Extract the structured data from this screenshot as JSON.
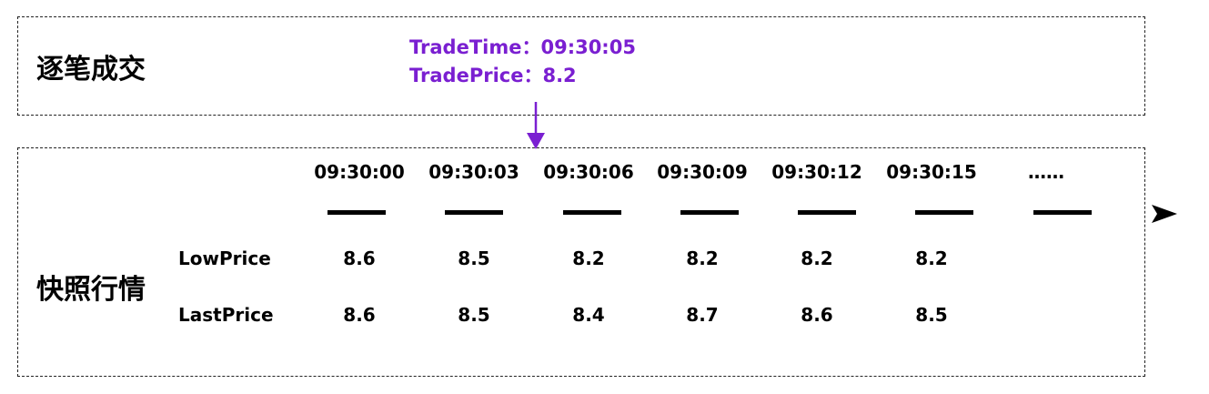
{
  "trade_panel": {
    "title": "逐笔成交",
    "trade_time": "TradeTime：09:30:05",
    "trade_price": "TradePrice：8.2",
    "accent_color": "#7a1fd1"
  },
  "snapshot_panel": {
    "title": "快照行情",
    "times": [
      "09:30:00",
      "09:30:03",
      "09:30:06",
      "09:30:09",
      "09:30:12",
      "09:30:15",
      "……"
    ],
    "rows": [
      {
        "label": "LowPrice",
        "values": [
          "8.6",
          "8.5",
          "8.2",
          "8.2",
          "8.2",
          "8.2"
        ]
      },
      {
        "label": "LastPrice",
        "values": [
          "8.6",
          "8.5",
          "8.4",
          "8.7",
          "8.6",
          "8.5"
        ]
      }
    ]
  }
}
